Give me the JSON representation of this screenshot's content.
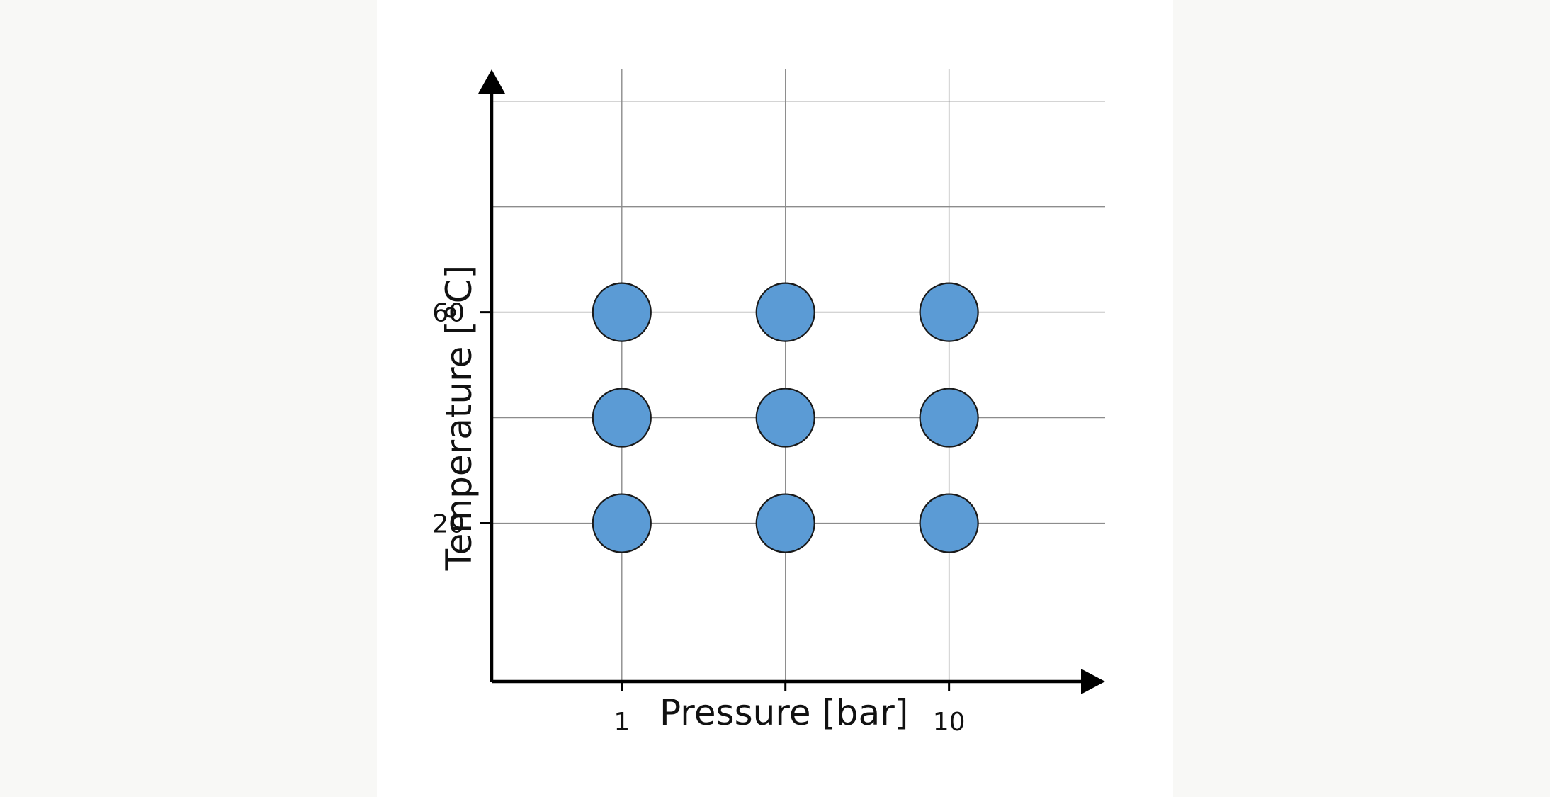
{
  "chart_data": {
    "type": "scatter",
    "xlabel": "Pressure [bar]",
    "ylabel": "Temperature [°C]",
    "x_scale": "log",
    "xlim": [
      0.4,
      30
    ],
    "ylim": [
      -10,
      106
    ],
    "x_ticks": [
      {
        "value": 1,
        "label": "1"
      },
      {
        "value": 3.1623,
        "label": ""
      },
      {
        "value": 10,
        "label": "10"
      }
    ],
    "y_ticks": [
      {
        "value": 20,
        "label": "20"
      },
      {
        "value": 60,
        "label": "60"
      }
    ],
    "x_gridlines": [
      1,
      3.1623,
      10
    ],
    "y_gridlines": [
      20,
      40,
      60,
      80,
      100
    ],
    "grid": true,
    "marker_color": "#5b9bd5",
    "points": [
      {
        "x": 1,
        "y": 60
      },
      {
        "x": 3.1623,
        "y": 60
      },
      {
        "x": 10,
        "y": 60
      },
      {
        "x": 1,
        "y": 40
      },
      {
        "x": 3.1623,
        "y": 40
      },
      {
        "x": 10,
        "y": 40
      },
      {
        "x": 1,
        "y": 20
      },
      {
        "x": 3.1623,
        "y": 20
      },
      {
        "x": 10,
        "y": 20
      }
    ]
  }
}
